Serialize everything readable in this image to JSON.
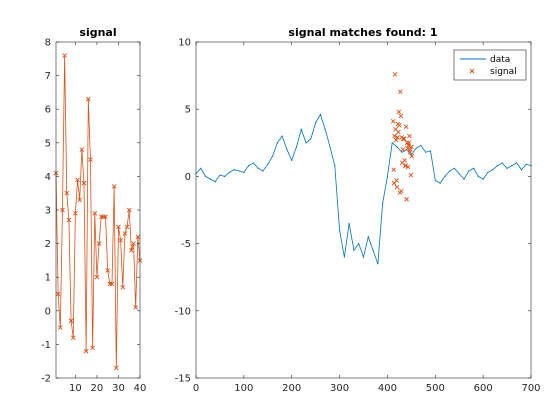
{
  "window": {
    "width": 560,
    "height": 420,
    "background": "#ffffff"
  },
  "colors": {
    "data": "#0072BD",
    "signal": "#D95319",
    "axis": "#262626"
  },
  "chart_data": [
    {
      "type": "line",
      "title": "signal",
      "xlabel": "",
      "ylabel": "",
      "xlim": [
        1,
        40
      ],
      "ylim": [
        -2,
        8
      ],
      "xticks": [
        10,
        20,
        30,
        40
      ],
      "yticks": [
        -2,
        -1,
        0,
        1,
        2,
        3,
        4,
        5,
        6,
        7,
        8
      ],
      "series": [
        {
          "marker": "x",
          "x": [
            1,
            2,
            3,
            4,
            5,
            6,
            7,
            8,
            9,
            10,
            11,
            12,
            13,
            14,
            15,
            16,
            17,
            18,
            19,
            20,
            21,
            22,
            23,
            24,
            25,
            26,
            27,
            28,
            29,
            30,
            31,
            32,
            33,
            34,
            35,
            36,
            37,
            38,
            39,
            40
          ],
          "values": [
            4.1,
            0.5,
            -0.5,
            3.0,
            7.6,
            3.5,
            2.7,
            -0.3,
            -0.8,
            2.9,
            3.9,
            3.3,
            4.8,
            3.8,
            -1.2,
            6.3,
            4.5,
            -1.1,
            2.9,
            1.0,
            2.0,
            2.8,
            2.8,
            2.8,
            1.2,
            0.8,
            0.8,
            3.7,
            -1.7,
            2.5,
            2.1,
            0.7,
            2.3,
            2.5,
            3.0,
            1.8,
            2.0,
            0.1,
            2.2,
            1.5
          ]
        }
      ]
    },
    {
      "type": "line",
      "title": "signal matches found: 1",
      "xlabel": "",
      "ylabel": "",
      "xlim": [
        0,
        700
      ],
      "ylim": [
        -15,
        10
      ],
      "xticks": [
        0,
        100,
        200,
        300,
        400,
        500,
        600,
        700
      ],
      "yticks": [
        -15,
        -10,
        -5,
        0,
        5,
        10
      ],
      "legend": {
        "position": "top-right",
        "entries": [
          "data",
          "signal"
        ]
      },
      "series": [
        {
          "name": "data",
          "style": "line",
          "x": [
            0,
            10,
            20,
            30,
            40,
            50,
            60,
            70,
            80,
            90,
            100,
            110,
            120,
            130,
            140,
            150,
            160,
            170,
            180,
            190,
            200,
            210,
            220,
            230,
            240,
            250,
            260,
            270,
            280,
            290,
            300,
            310,
            320,
            330,
            340,
            350,
            360,
            370,
            380,
            390,
            400,
            410,
            420,
            430,
            440,
            450,
            460,
            470,
            480,
            490,
            500,
            510,
            520,
            530,
            540,
            550,
            560,
            570,
            580,
            590,
            600,
            610,
            620,
            630,
            640,
            650,
            660,
            670,
            680,
            690,
            700
          ],
          "values": [
            0.2,
            0.6,
            0.0,
            -0.2,
            -0.4,
            0.1,
            0.0,
            0.3,
            0.5,
            0.4,
            0.3,
            0.8,
            1.0,
            0.6,
            0.4,
            0.9,
            1.5,
            2.5,
            3.0,
            2.0,
            1.2,
            2.2,
            3.5,
            2.5,
            2.8,
            4.0,
            4.6,
            3.5,
            2.2,
            0.8,
            -4.0,
            -6.0,
            -3.5,
            -5.5,
            -5.0,
            -6.0,
            -4.5,
            -5.5,
            -6.5,
            -2.0,
            0.0,
            2.5,
            2.2,
            1.8,
            2.0,
            1.6,
            2.1,
            2.3,
            1.8,
            1.9,
            -0.3,
            -0.5,
            0.0,
            0.4,
            0.6,
            0.2,
            -0.2,
            0.4,
            0.6,
            0.0,
            -0.2,
            0.3,
            0.5,
            0.8,
            1.0,
            0.6,
            0.8,
            1.0,
            0.5,
            0.9,
            0.8
          ]
        },
        {
          "name": "signal",
          "style": "marker",
          "x": [
            412,
            413,
            414,
            415,
            416,
            417,
            418,
            419,
            420,
            421,
            422,
            423,
            424,
            425,
            426,
            427,
            428,
            429,
            430,
            431,
            432,
            433,
            434,
            435,
            436,
            437,
            438,
            439,
            440,
            441,
            442,
            443,
            444,
            445,
            446,
            447,
            448,
            449,
            450,
            451
          ],
          "values": [
            4.1,
            0.5,
            -0.5,
            3.0,
            7.6,
            3.5,
            2.7,
            -0.3,
            -0.8,
            2.9,
            3.9,
            3.3,
            4.8,
            3.8,
            -1.2,
            6.3,
            4.5,
            -1.1,
            2.9,
            1.0,
            2.0,
            2.8,
            2.8,
            2.8,
            1.2,
            0.8,
            0.8,
            3.7,
            -1.7,
            2.5,
            2.1,
            0.7,
            2.3,
            2.5,
            3.0,
            1.8,
            2.0,
            0.1,
            2.2,
            1.5
          ]
        }
      ]
    }
  ]
}
